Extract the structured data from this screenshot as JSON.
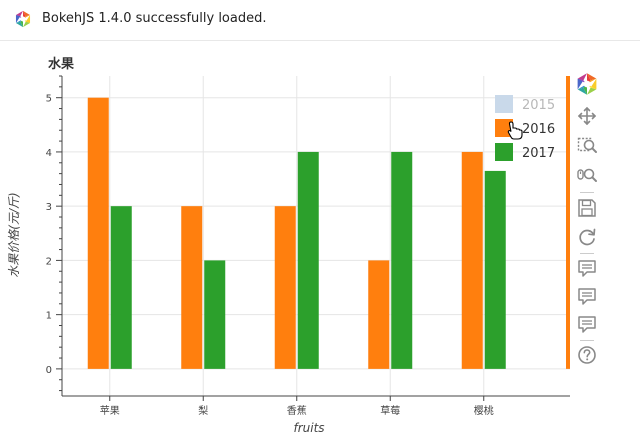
{
  "app": {
    "load_message": "BokehJS 1.4.0 successfully loaded."
  },
  "toolbar": {
    "tools": [
      {
        "name": "bokeh-logo-icon"
      },
      {
        "name": "pan-tool"
      },
      {
        "name": "box-zoom-tool"
      },
      {
        "name": "wheel-zoom-tool"
      },
      {
        "name": "save-tool"
      },
      {
        "name": "reset-tool"
      },
      {
        "name": "hover-tool-1"
      },
      {
        "name": "hover-tool-2"
      },
      {
        "name": "hover-tool-3"
      },
      {
        "name": "help-tool"
      }
    ]
  },
  "colors": {
    "s2015": "#c9d9ea",
    "s2016": "#ff7f0e",
    "s2017": "#2ca02c"
  },
  "chart_data": {
    "type": "bar",
    "title": "水果",
    "xlabel": "fruits",
    "ylabel": "水果价格(元/斤)",
    "categories": [
      "苹果",
      "梨",
      "香蕉",
      "草莓",
      "樱桃"
    ],
    "ylim": [
      -0.5,
      5.4
    ],
    "yticks": [
      0,
      1,
      2,
      3,
      4,
      5
    ],
    "grid": true,
    "legend_position": "top-right",
    "series": [
      {
        "name": "2015",
        "values": [
          null,
          null,
          null,
          null,
          null
        ],
        "hidden": true
      },
      {
        "name": "2016",
        "values": [
          5,
          3,
          3,
          2,
          4
        ]
      },
      {
        "name": "2017",
        "values": [
          3,
          2,
          4,
          4,
          3.65
        ]
      }
    ]
  }
}
